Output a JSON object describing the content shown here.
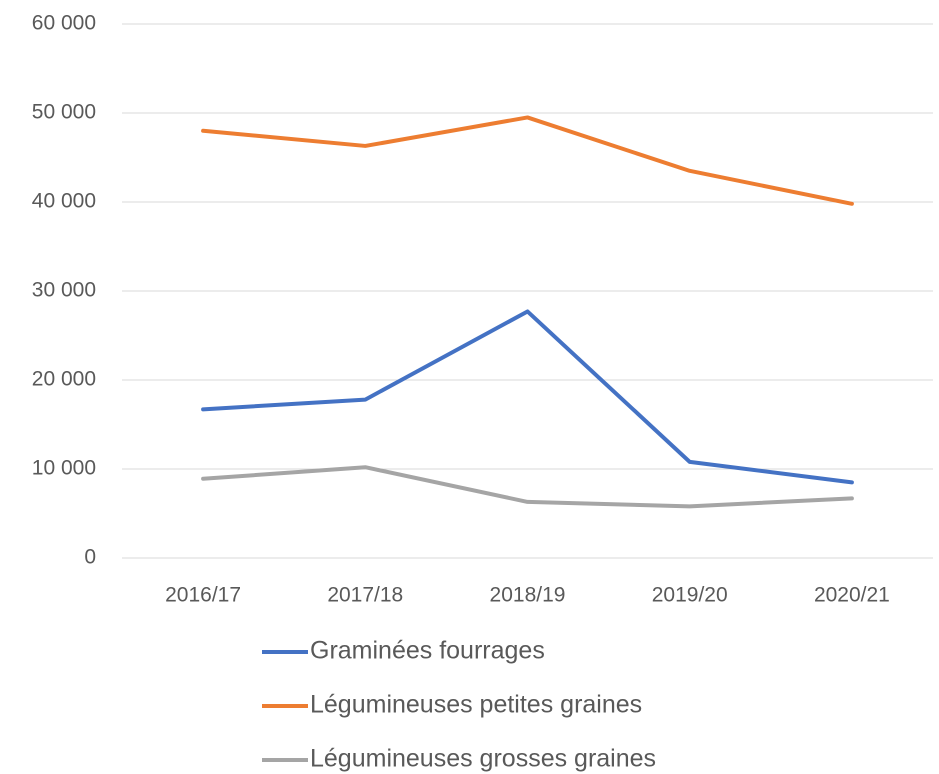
{
  "chart_data": {
    "type": "line",
    "categories": [
      "2016/17",
      "2017/18",
      "2018/19",
      "2019/20",
      "2020/21"
    ],
    "series": [
      {
        "name": "Graminées fourrages",
        "color": "#4472c4",
        "values": [
          16700,
          17800,
          27700,
          10800,
          8500
        ]
      },
      {
        "name": "Légumineuses petites graines",
        "color": "#ed7d31",
        "values": [
          48000,
          46300,
          49500,
          43500,
          39800
        ]
      },
      {
        "name": "Légumineuses grosses graines",
        "color": "#a5a5a5",
        "values": [
          8900,
          10200,
          6300,
          5800,
          6700
        ]
      }
    ],
    "ylim": [
      0,
      60000
    ],
    "yticks": [
      0,
      {
        "value": 10000,
        "label": "10 000"
      },
      {
        "value": 20000,
        "label": "20 000"
      },
      {
        "value": 30000,
        "label": "30 000"
      },
      {
        "value": 40000,
        "label": "40 000"
      },
      {
        "value": 50000,
        "label": "50 000"
      },
      {
        "value": 60000,
        "label": "60 000"
      }
    ],
    "grid": true,
    "legend": "bottom"
  }
}
